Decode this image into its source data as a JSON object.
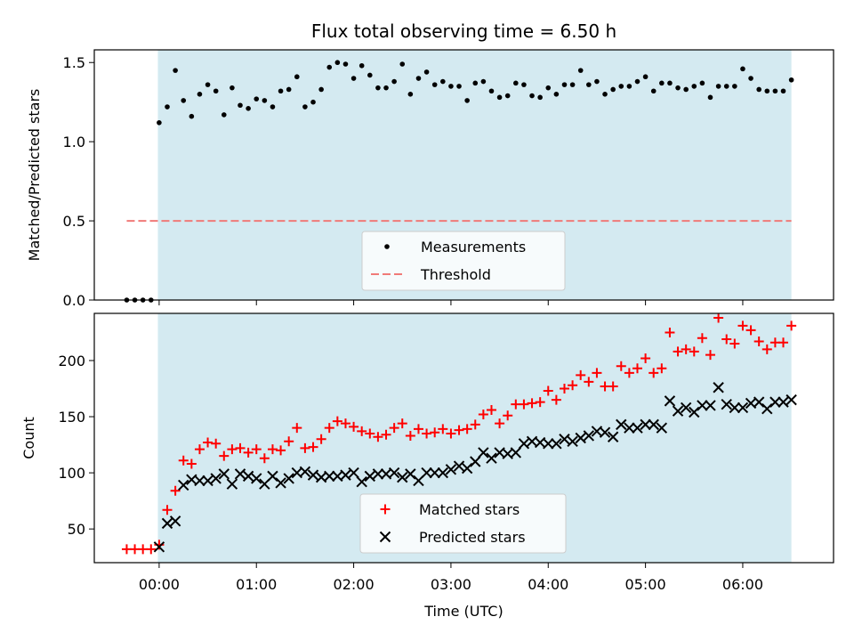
{
  "chart_data": [
    {
      "type": "scatter",
      "title": "Flux total observing time = 6.50 h",
      "xlabel": "",
      "ylabel": "Matched/Predicted stars",
      "ylim": [
        0,
        1.58
      ],
      "yticks": [
        "0.0",
        "0.5",
        "1.0",
        "1.5"
      ],
      "observing_window": {
        "start": "-00:00:48",
        "end": "06:30:00",
        "color": "#d4eaf1"
      },
      "legend_position": "lower-center",
      "series": [
        {
          "name": "Measurements",
          "color": "#000000",
          "marker": "dot",
          "x": [
            "-00:20:00",
            "-00:15:00",
            "-00:10:00",
            "-00:05:00",
            "00:00:00",
            "00:05:00",
            "00:10:00",
            "00:15:00",
            "00:20:00",
            "00:25:00",
            "00:30:00",
            "00:35:00",
            "00:40:00",
            "00:45:00",
            "00:50:00",
            "00:55:00",
            "01:00:00",
            "01:05:00",
            "01:10:00",
            "01:15:00",
            "01:20:00",
            "01:25:00",
            "01:30:00",
            "01:35:00",
            "01:40:00",
            "01:45:00",
            "01:50:00",
            "01:55:00",
            "02:00:00",
            "02:05:00",
            "02:10:00",
            "02:15:00",
            "02:20:00",
            "02:25:00",
            "02:30:00",
            "02:35:00",
            "02:40:00",
            "02:45:00",
            "02:50:00",
            "02:55:00",
            "03:00:00",
            "03:05:00",
            "03:10:00",
            "03:15:00",
            "03:20:00",
            "03:25:00",
            "03:30:00",
            "03:35:00",
            "03:40:00",
            "03:45:00",
            "03:50:00",
            "03:55:00",
            "04:00:00",
            "04:05:00",
            "04:10:00",
            "04:15:00",
            "04:20:00",
            "04:25:00",
            "04:30:00",
            "04:35:00",
            "04:40:00",
            "04:45:00",
            "04:50:00",
            "04:55:00",
            "05:00:00",
            "05:05:00",
            "05:10:00",
            "05:15:00",
            "05:20:00",
            "05:25:00",
            "05:30:00",
            "05:35:00",
            "05:40:00",
            "05:45:00",
            "05:50:00",
            "05:55:00",
            "06:00:00",
            "06:05:00",
            "06:10:00",
            "06:15:00",
            "06:20:00",
            "06:25:00",
            "06:30:00"
          ],
          "values": [
            0.0,
            0.0,
            0.0,
            0.0,
            1.12,
            1.22,
            1.45,
            1.26,
            1.16,
            1.3,
            1.36,
            1.32,
            1.17,
            1.34,
            1.23,
            1.21,
            1.27,
            1.26,
            1.22,
            1.32,
            1.33,
            1.41,
            1.22,
            1.25,
            1.33,
            1.47,
            1.5,
            1.49,
            1.4,
            1.48,
            1.42,
            1.34,
            1.34,
            1.38,
            1.49,
            1.3,
            1.4,
            1.44,
            1.36,
            1.38,
            1.35,
            1.35,
            1.26,
            1.37,
            1.38,
            1.32,
            1.28,
            1.29,
            1.37,
            1.36,
            1.29,
            1.28,
            1.34,
            1.3,
            1.36,
            1.36,
            1.45,
            1.36,
            1.38,
            1.3,
            1.33,
            1.35,
            1.35,
            1.38,
            1.41,
            1.32,
            1.37,
            1.37,
            1.34,
            1.33,
            1.35,
            1.37,
            1.28,
            1.35,
            1.35,
            1.35,
            1.46,
            1.4,
            1.33,
            1.32,
            1.32,
            1.32,
            1.39
          ]
        },
        {
          "name": "Threshold",
          "color": "#f07a78",
          "style": "dashed",
          "x": [
            "-00:20:00",
            "06:30:00"
          ],
          "values": [
            0.5,
            0.5
          ]
        }
      ]
    },
    {
      "type": "scatter",
      "title": "",
      "xlabel": "Time (UTC)",
      "ylabel": "Count",
      "ylim": [
        20,
        242
      ],
      "yticks": [
        "50",
        "100",
        "150",
        "200"
      ],
      "xlim": [
        "-00:40:00",
        "06:56:00"
      ],
      "xticks": [
        "00:00",
        "01:00",
        "02:00",
        "03:00",
        "04:00",
        "05:00",
        "06:00"
      ],
      "observing_window": {
        "start": "-00:00:48",
        "end": "06:30:00",
        "color": "#d4eaf1"
      },
      "legend_position": "lower-center",
      "series": [
        {
          "name": "Matched stars",
          "color": "#ff0000",
          "marker": "plus",
          "x": [
            "-00:20:00",
            "-00:15:00",
            "-00:10:00",
            "-00:05:00",
            "00:00:00",
            "00:05:00",
            "00:10:00",
            "00:15:00",
            "00:20:00",
            "00:25:00",
            "00:30:00",
            "00:35:00",
            "00:40:00",
            "00:45:00",
            "00:50:00",
            "00:55:00",
            "01:00:00",
            "01:05:00",
            "01:10:00",
            "01:15:00",
            "01:20:00",
            "01:25:00",
            "01:30:00",
            "01:35:00",
            "01:40:00",
            "01:45:00",
            "01:50:00",
            "01:55:00",
            "02:00:00",
            "02:05:00",
            "02:10:00",
            "02:15:00",
            "02:20:00",
            "02:25:00",
            "02:30:00",
            "02:35:00",
            "02:40:00",
            "02:45:00",
            "02:50:00",
            "02:55:00",
            "03:00:00",
            "03:05:00",
            "03:10:00",
            "03:15:00",
            "03:20:00",
            "03:25:00",
            "03:30:00",
            "03:35:00",
            "03:40:00",
            "03:45:00",
            "03:50:00",
            "03:55:00",
            "04:00:00",
            "04:05:00",
            "04:10:00",
            "04:15:00",
            "04:20:00",
            "04:25:00",
            "04:30:00",
            "04:35:00",
            "04:40:00",
            "04:45:00",
            "04:50:00",
            "04:55:00",
            "05:00:00",
            "05:05:00",
            "05:10:00",
            "05:15:00",
            "05:20:00",
            "05:25:00",
            "05:30:00",
            "05:35:00",
            "05:40:00",
            "05:45:00",
            "05:50:00",
            "05:55:00",
            "06:00:00",
            "06:05:00",
            "06:10:00",
            "06:15:00",
            "06:20:00",
            "06:25:00",
            "06:30:00"
          ],
          "values": [
            32,
            32,
            32,
            32,
            36,
            67,
            84,
            111,
            108,
            121,
            127,
            126,
            115,
            121,
            122,
            118,
            121,
            113,
            121,
            120,
            128,
            140,
            122,
            123,
            130,
            140,
            146,
            144,
            141,
            137,
            135,
            132,
            134,
            140,
            144,
            133,
            139,
            135,
            136,
            139,
            135,
            138,
            139,
            143,
            152,
            156,
            144,
            151,
            161,
            161,
            162,
            163,
            173,
            165,
            175,
            178,
            187,
            181,
            189,
            177,
            177,
            195,
            189,
            193,
            202,
            189,
            193,
            225,
            208,
            210,
            208,
            220,
            205,
            238,
            219,
            215,
            231,
            227,
            217,
            210,
            216,
            216,
            231
          ]
        },
        {
          "name": "Predicted stars",
          "color": "#000000",
          "marker": "x",
          "x": [
            "00:00:00",
            "00:05:00",
            "00:10:00",
            "00:15:00",
            "00:20:00",
            "00:25:00",
            "00:30:00",
            "00:35:00",
            "00:40:00",
            "00:45:00",
            "00:50:00",
            "00:55:00",
            "01:00:00",
            "01:05:00",
            "01:10:00",
            "01:15:00",
            "01:20:00",
            "01:25:00",
            "01:30:00",
            "01:35:00",
            "01:40:00",
            "01:45:00",
            "01:50:00",
            "01:55:00",
            "02:00:00",
            "02:05:00",
            "02:10:00",
            "02:15:00",
            "02:20:00",
            "02:25:00",
            "02:30:00",
            "02:35:00",
            "02:40:00",
            "02:45:00",
            "02:50:00",
            "02:55:00",
            "03:00:00",
            "03:05:00",
            "03:10:00",
            "03:15:00",
            "03:20:00",
            "03:25:00",
            "03:30:00",
            "03:35:00",
            "03:40:00",
            "03:45:00",
            "03:50:00",
            "03:55:00",
            "04:00:00",
            "04:05:00",
            "04:10:00",
            "04:15:00",
            "04:20:00",
            "04:25:00",
            "04:30:00",
            "04:35:00",
            "04:40:00",
            "04:45:00",
            "04:50:00",
            "04:55:00",
            "05:00:00",
            "05:05:00",
            "05:10:00",
            "05:15:00",
            "05:20:00",
            "05:25:00",
            "05:30:00",
            "05:35:00",
            "05:40:00",
            "05:45:00",
            "05:50:00",
            "05:55:00",
            "06:00:00",
            "06:05:00",
            "06:10:00",
            "06:15:00",
            "06:20:00",
            "06:25:00",
            "06:30:00"
          ],
          "values": [
            34,
            55,
            57,
            89,
            94,
            93,
            93,
            95,
            99,
            90,
            99,
            97,
            95,
            90,
            97,
            91,
            95,
            100,
            101,
            98,
            96,
            97,
            97,
            98,
            100,
            92,
            97,
            99,
            99,
            100,
            96,
            99,
            93,
            100,
            100,
            100,
            103,
            106,
            104,
            110,
            118,
            113,
            118,
            117,
            118,
            126,
            128,
            127,
            126,
            126,
            130,
            128,
            131,
            133,
            137,
            136,
            132,
            143,
            140,
            140,
            143,
            143,
            140,
            164,
            155,
            158,
            154,
            160,
            160,
            176,
            161,
            158,
            158,
            162,
            163,
            157,
            163,
            163,
            165
          ]
        }
      ]
    }
  ]
}
